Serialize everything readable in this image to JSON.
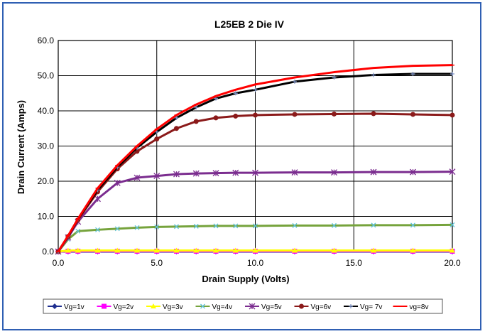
{
  "chart_data": {
    "type": "line",
    "title": "L25EB 2 Die IV",
    "xlabel": "Drain  Supply  (Volts)",
    "ylabel": "Drain Current  (Amps)",
    "xlim": [
      0,
      20
    ],
    "ylim": [
      0,
      60
    ],
    "x_ticks": [
      "0.0",
      "5.0",
      "10.0",
      "15.0",
      "20.0"
    ],
    "y_ticks": [
      "0.0",
      "10.0",
      "20.0",
      "30.0",
      "40.0",
      "50.0",
      "60.0"
    ],
    "grid": true,
    "legend_position": "bottom",
    "series": [
      {
        "name": "Vg=1v",
        "color": "#1f2f8f",
        "marker": "diamond",
        "x": [
          0,
          0.5,
          1,
          2,
          3,
          4,
          5,
          6,
          7,
          8,
          9,
          10,
          12,
          14,
          16,
          18,
          20
        ],
        "y": [
          0,
          0,
          0,
          0,
          0,
          0,
          0,
          0,
          0,
          0,
          0,
          0,
          0,
          0,
          0,
          0,
          0
        ]
      },
      {
        "name": "Vg=2v",
        "color": "#ff00ff",
        "marker": "square",
        "x": [
          0,
          0.5,
          1,
          2,
          3,
          4,
          5,
          6,
          7,
          8,
          9,
          10,
          12,
          14,
          16,
          18,
          20
        ],
        "y": [
          0,
          0.1,
          0.1,
          0.1,
          0.1,
          0.1,
          0.1,
          0.1,
          0.1,
          0.1,
          0.1,
          0.1,
          0.1,
          0.1,
          0.1,
          0.1,
          0.1
        ]
      },
      {
        "name": "Vg=3v",
        "color": "#ffff00",
        "marker": "triangle",
        "x": [
          0,
          0.5,
          1,
          2,
          3,
          4,
          5,
          6,
          7,
          8,
          9,
          10,
          12,
          14,
          16,
          18,
          20
        ],
        "y": [
          0,
          0.3,
          0.3,
          0.3,
          0.3,
          0.3,
          0.3,
          0.3,
          0.3,
          0.3,
          0.3,
          0.3,
          0.3,
          0.3,
          0.3,
          0.3,
          0.3
        ]
      },
      {
        "name": "Vg=4v",
        "color": "#76a33c",
        "marker": "x",
        "x": [
          0,
          0.5,
          1,
          2,
          3,
          4,
          5,
          6,
          7,
          8,
          9,
          10,
          12,
          14,
          16,
          18,
          20
        ],
        "y": [
          0,
          3.5,
          5.8,
          6.2,
          6.5,
          6.8,
          7.0,
          7.1,
          7.2,
          7.3,
          7.3,
          7.3,
          7.4,
          7.4,
          7.5,
          7.5,
          7.6
        ]
      },
      {
        "name": "Vg=5v",
        "color": "#7b2d8f",
        "marker": "asterisk",
        "x": [
          0,
          0.5,
          1,
          2,
          3,
          4,
          5,
          6,
          7,
          8,
          9,
          10,
          12,
          14,
          16,
          18,
          20
        ],
        "y": [
          0,
          4,
          8.5,
          15,
          19.5,
          21,
          21.5,
          22,
          22.2,
          22.3,
          22.4,
          22.4,
          22.5,
          22.5,
          22.6,
          22.6,
          22.7
        ]
      },
      {
        "name": "Vg=6v",
        "color": "#8b1a1a",
        "marker": "circle",
        "x": [
          0,
          0.5,
          1,
          2,
          3,
          4,
          5,
          6,
          7,
          8,
          9,
          10,
          12,
          14,
          16,
          18,
          20
        ],
        "y": [
          0,
          4.3,
          9,
          17,
          23.5,
          28.5,
          32,
          35,
          37,
          38,
          38.5,
          38.8,
          39,
          39.1,
          39.2,
          39,
          38.8
        ]
      },
      {
        "name": "Vg= 7v",
        "color": "#000000",
        "marker": "plus",
        "x": [
          0,
          0.5,
          1,
          2,
          3,
          4,
          5,
          6,
          7,
          8,
          9,
          10,
          12,
          14,
          16,
          18,
          20
        ],
        "y": [
          0,
          4.4,
          9.2,
          17.5,
          24,
          29.5,
          34,
          38,
          41,
          43.5,
          45,
          46,
          48.3,
          49.5,
          50.2,
          50.5,
          50.5
        ]
      },
      {
        "name": "vg=8v",
        "color": "#ff0000",
        "marker": "dash",
        "x": [
          0,
          0.5,
          1,
          2,
          3,
          4,
          5,
          6,
          7,
          8,
          9,
          10,
          12,
          14,
          16,
          18,
          20
        ],
        "y": [
          0,
          4.5,
          9.3,
          18,
          24.5,
          30,
          34.8,
          38.8,
          41.8,
          44.2,
          46,
          47.5,
          49.5,
          51,
          52.2,
          52.8,
          53
        ]
      }
    ]
  }
}
